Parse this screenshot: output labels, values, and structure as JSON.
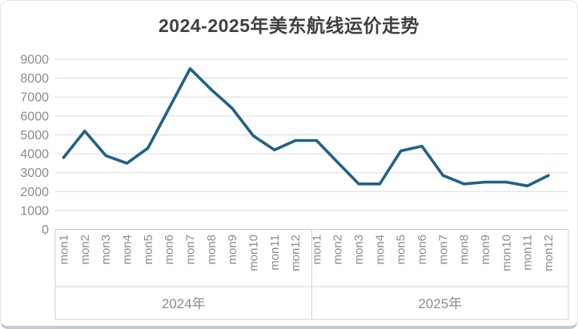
{
  "chart_data": {
    "type": "line",
    "title": "2024-2025年美东航线运价走势",
    "categories": [
      "mon1",
      "mon2",
      "mon3",
      "mon4",
      "mon5",
      "mon6",
      "mon7",
      "mon8",
      "mon9",
      "mon10",
      "mon11",
      "mon12",
      "mon1",
      "mon2",
      "mon3",
      "mon4",
      "mon5",
      "mon6",
      "mon7",
      "mon8",
      "mon9",
      "mon10",
      "mon11",
      "mon12"
    ],
    "category_groups": [
      {
        "label": "2024年",
        "span": 12
      },
      {
        "label": "2025年",
        "span": 12
      }
    ],
    "series": [
      {
        "values": [
          3800,
          5200,
          3900,
          3500,
          4300,
          6400,
          8500,
          7400,
          6400,
          4950,
          4200,
          4700,
          4700,
          3550,
          2400,
          2400,
          4150,
          4400,
          2850,
          2400,
          2500,
          2500,
          2300,
          2850
        ]
      }
    ],
    "ylim": [
      0,
      9000
    ],
    "ytick_step": 1000,
    "ytick_labels": [
      "0",
      "1000",
      "2000",
      "3000",
      "4000",
      "5000",
      "6000",
      "7000",
      "8000",
      "9000"
    ],
    "grid": "horizontal",
    "legend": "none",
    "colors": {
      "line": "#1f6384",
      "grid": "#dadada",
      "axis": "#cfcfcf",
      "labels": "#8c8c8c",
      "title": "#404040"
    }
  }
}
